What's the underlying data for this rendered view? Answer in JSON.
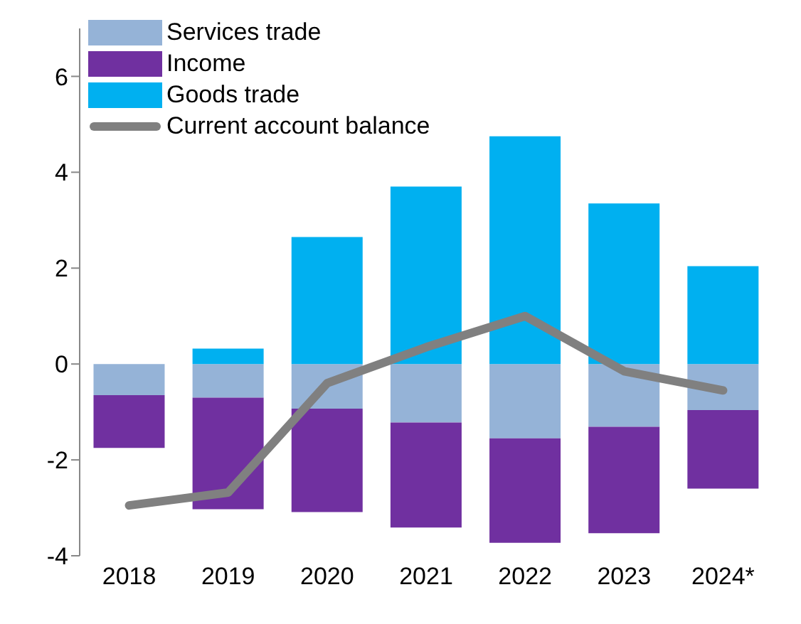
{
  "chart_data": {
    "type": "bar",
    "stacked": true,
    "categories": [
      "2018",
      "2019",
      "2020",
      "2021",
      "2022",
      "2023",
      "2024*"
    ],
    "series": [
      {
        "name": "Services trade",
        "color": "#95b3d7",
        "values": [
          -0.65,
          -0.7,
          -0.93,
          -1.22,
          -1.55,
          -1.31,
          -0.96
        ]
      },
      {
        "name": "Income",
        "color": "#7030a0",
        "values": [
          -1.1,
          -2.33,
          -2.16,
          -2.19,
          -2.18,
          -2.22,
          -1.64
        ]
      },
      {
        "name": "Goods trade",
        "color": "#00b0f0",
        "values": [
          0,
          0.32,
          2.65,
          3.7,
          4.75,
          3.35,
          2.04
        ]
      },
      {
        "name": "Current account balance",
        "type": "line",
        "color": "#808080",
        "values": [
          -2.95,
          -2.68,
          -0.4,
          0.35,
          1.0,
          -0.15,
          -0.55
        ]
      }
    ],
    "ylim": [
      -4,
      7
    ],
    "yticks": [
      -4,
      -2,
      0,
      2,
      4,
      6
    ],
    "grid": false,
    "legend": "top left",
    "marker": "none"
  }
}
